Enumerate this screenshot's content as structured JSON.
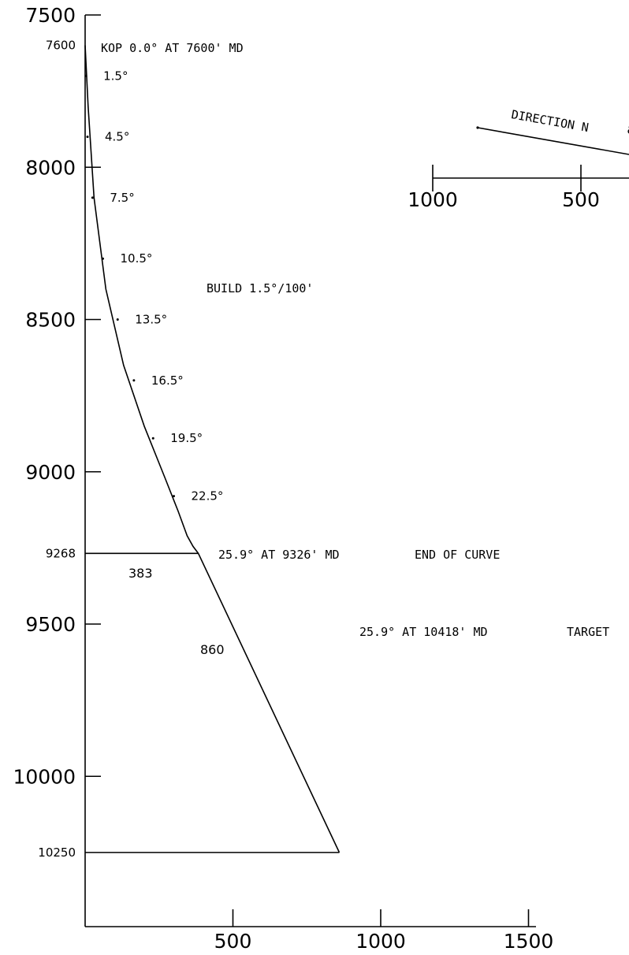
{
  "chart_data": {
    "type": "line",
    "title": "",
    "xlabel": "",
    "ylabel": "",
    "ylim": [
      7500,
      10600
    ],
    "y_inverted": true,
    "xlim": [
      0,
      1500
    ],
    "y_ticks": [
      {
        "value": 7500,
        "label": "7500",
        "size": "big"
      },
      {
        "value": 7600,
        "label": "7600",
        "size": "small"
      },
      {
        "value": 8000,
        "label": "8000",
        "size": "big"
      },
      {
        "value": 8500,
        "label": "8500",
        "size": "big"
      },
      {
        "value": 9000,
        "label": "9000",
        "size": "big"
      },
      {
        "value": 9268,
        "label": "9268",
        "size": "small"
      },
      {
        "value": 9500,
        "label": "9500",
        "size": "big"
      },
      {
        "value": 10000,
        "label": "10000",
        "size": "big"
      },
      {
        "value": 10250,
        "label": "10250",
        "size": "small"
      }
    ],
    "x_ticks": [
      {
        "value": 500,
        "label": "500"
      },
      {
        "value": 1000,
        "label": "1000"
      },
      {
        "value": 1500,
        "label": "1500"
      }
    ],
    "series": [
      {
        "x": [
          0,
          10,
          30,
          70,
          130,
          200,
          270,
          315,
          345,
          365,
          383,
          860
        ],
        "y": [
          7600,
          7800,
          8100,
          8400,
          8650,
          8850,
          9020,
          9130,
          9210,
          9245,
          9268,
          10250
        ]
      }
    ],
    "build_marks": [
      {
        "label": "1.5°",
        "x": 3,
        "y": 7700
      },
      {
        "label": "4.5°",
        "x": 8,
        "y": 7900
      },
      {
        "label": "7.5°",
        "x": 25,
        "y": 8100
      },
      {
        "label": "10.5°",
        "x": 60,
        "y": 8300
      },
      {
        "label": "13.5°",
        "x": 110,
        "y": 8500
      },
      {
        "label": "16.5°",
        "x": 165,
        "y": 8700
      },
      {
        "label": "19.5°",
        "x": 230,
        "y": 8890
      },
      {
        "label": "22.5°",
        "x": 300,
        "y": 9080
      }
    ],
    "annotations": {
      "kop": "KOP 0.0° AT 7600' MD",
      "build": "BUILD 1.5°/100'",
      "eoc": "25.9° AT 9326' MD",
      "eoc_label": "END OF CURVE",
      "eoc_dist": "383",
      "target": "25.9° AT 10418' MD",
      "target_label": "TARGET",
      "target_dist": "860"
    },
    "inset": {
      "direction": "DIRECTION N",
      "ticks": [
        {
          "value": 1000,
          "label": "1000"
        },
        {
          "value": 500,
          "label": "500"
        }
      ]
    }
  }
}
